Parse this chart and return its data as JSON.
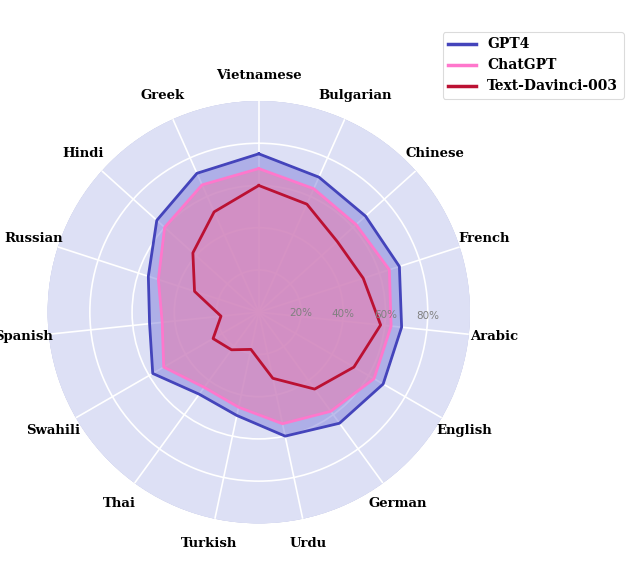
{
  "categories": [
    "Vietnamese",
    "Bulgarian",
    "Chinese",
    "French",
    "Arabic",
    "English",
    "German",
    "Urdu",
    "Turkish",
    "Thai",
    "Swahili",
    "Spanish",
    "Russian",
    "Hindi",
    "Greek"
  ],
  "GPT4": [
    75,
    70,
    68,
    70,
    68,
    68,
    65,
    60,
    50,
    48,
    58,
    52,
    55,
    65,
    72
  ],
  "ChatGPT": [
    68,
    64,
    62,
    65,
    63,
    63,
    58,
    54,
    46,
    44,
    52,
    46,
    50,
    60,
    66
  ],
  "TextDavinci": [
    60,
    56,
    50,
    52,
    58,
    52,
    45,
    32,
    18,
    22,
    25,
    18,
    32,
    42,
    52
  ],
  "gpt4_color": "#4444bb",
  "chatgpt_color": "#ff77cc",
  "textdavinci_color": "#bb1133",
  "gpt4_fill_color": "#8888dd",
  "chatgpt_fill_color": "#dd88bb",
  "bg_color": "#dde0f5",
  "outer_bg": "#c8cce8",
  "grid_color": "white",
  "tick_labels": [
    "20%",
    "40%",
    "60%",
    "80%"
  ],
  "tick_values": [
    20,
    40,
    60,
    80
  ],
  "rmax": 100,
  "legend_labels": [
    "GPT4",
    "ChatGPT",
    "Text-Davinci-003"
  ]
}
